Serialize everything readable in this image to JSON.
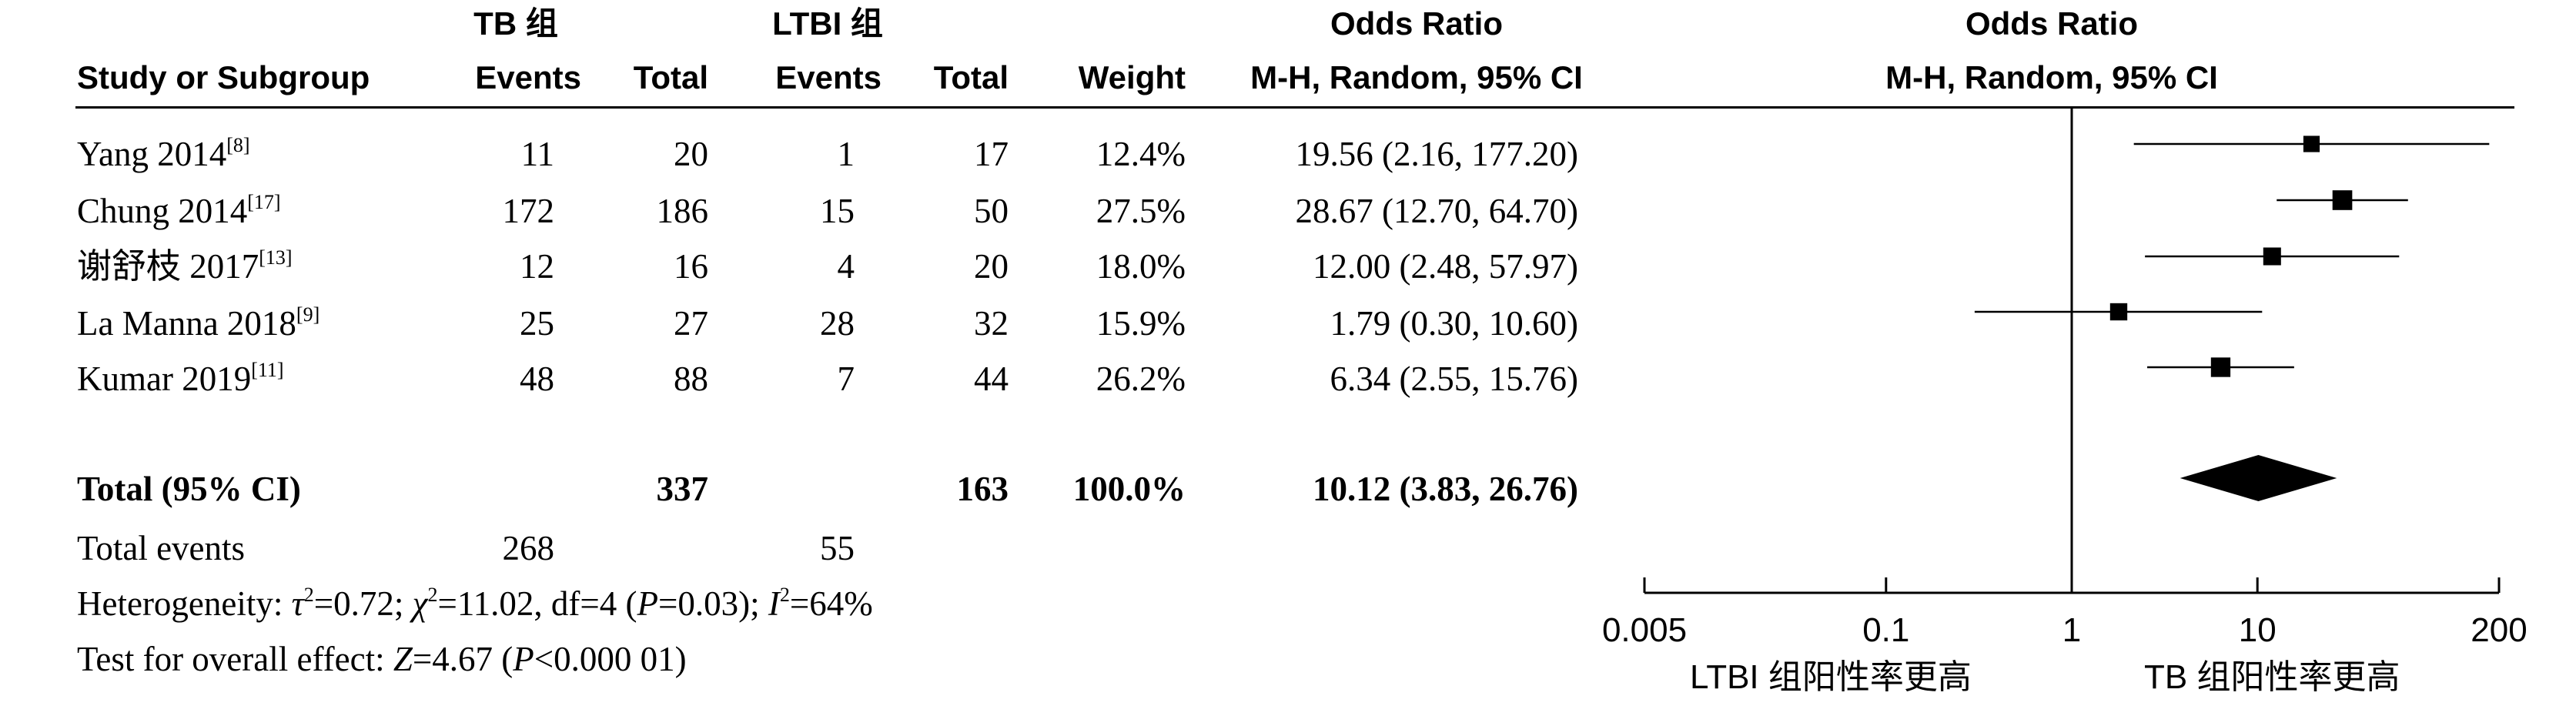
{
  "header": {
    "col_study": "Study or Subgroup",
    "group1": "TB 组",
    "group2": "LTBI 组",
    "events": "Events",
    "total": "Total",
    "weight": "Weight",
    "or_title": "Odds Ratio",
    "or_method": "M-H, Random, 95% CI",
    "plot_title": "Odds Ratio",
    "plot_method": "M-H, Random, 95% CI"
  },
  "studies": [
    {
      "name": "Yang 2014",
      "ref": "[8]",
      "tb_events": "11",
      "tb_total": "20",
      "ltbi_events": "1",
      "ltbi_total": "17",
      "weight": "12.4%",
      "ci_text": "19.56 (2.16, 177.20)"
    },
    {
      "name": "Chung 2014",
      "ref": "[17]",
      "tb_events": "172",
      "tb_total": "186",
      "ltbi_events": "15",
      "ltbi_total": "50",
      "weight": "27.5%",
      "ci_text": "28.67 (12.70, 64.70)"
    },
    {
      "name": "谢舒枝 2017",
      "ref": "[13]",
      "tb_events": "12",
      "tb_total": "16",
      "ltbi_events": "4",
      "ltbi_total": "20",
      "weight": "18.0%",
      "ci_text": "12.00 (2.48, 57.97)"
    },
    {
      "name": "La Manna 2018",
      "ref": "[9]",
      "tb_events": "25",
      "tb_total": "27",
      "ltbi_events": "28",
      "ltbi_total": "32",
      "weight": "15.9%",
      "ci_text": "1.79 (0.30, 10.60)"
    },
    {
      "name": "Kumar 2019",
      "ref": "[11]",
      "tb_events": "48",
      "tb_total": "88",
      "ltbi_events": "7",
      "ltbi_total": "44",
      "weight": "26.2%",
      "ci_text": "6.34 (2.55, 15.76)"
    }
  ],
  "total_row": {
    "label": "Total (95% CI)",
    "tb_total": "337",
    "ltbi_total": "163",
    "weight": "100.0%",
    "ci_text": "10.12 (3.83, 26.76)"
  },
  "events_row": {
    "label": "Total events",
    "tb_events": "268",
    "ltbi_events": "55"
  },
  "heterogeneity": {
    "prefix": "Heterogeneity: ",
    "tau_sym": "τ",
    "tau_rest": "=0.72; ",
    "chi_sym": "χ",
    "chi_rest": "=11.02, df=4 (",
    "p_sym": "P",
    "p_rest": "=0.03); ",
    "i_sym": "I",
    "i_rest": "=64%",
    "sq": "2"
  },
  "overall": {
    "prefix": "Test for overall effect: ",
    "z_sym": "Z",
    "z_rest": "=4.67 (",
    "p_sym": "P",
    "p_rest": "<0.000 01)"
  },
  "axis_labels": {
    "left": "LTBI 组阳性率更高",
    "right": "TB 组阳性率更高"
  },
  "chart_data": {
    "type": "forest",
    "scale": "log",
    "xlim": [
      0.005,
      200
    ],
    "ticks": [
      0.005,
      0.1,
      1,
      10,
      200
    ],
    "tick_labels": [
      "0.005",
      "0.1",
      "1",
      "10",
      "200"
    ],
    "null_line": 1,
    "studies": [
      {
        "name": "Yang 2014",
        "or": 19.56,
        "low": 2.16,
        "high": 177.2,
        "weight": 12.4
      },
      {
        "name": "Chung 2014",
        "or": 28.67,
        "low": 12.7,
        "high": 64.7,
        "weight": 27.5
      },
      {
        "name": "谢舒枝 2017",
        "or": 12.0,
        "low": 2.48,
        "high": 57.97,
        "weight": 18.0
      },
      {
        "name": "La Manna 2018",
        "or": 1.79,
        "low": 0.3,
        "high": 10.6,
        "weight": 15.9
      },
      {
        "name": "Kumar 2019",
        "or": 6.34,
        "low": 2.55,
        "high": 15.76,
        "weight": 26.2
      }
    ],
    "pooled": {
      "or": 10.12,
      "low": 3.83,
      "high": 26.76
    }
  },
  "colors": {
    "ink": "#000000",
    "background": "#ffffff"
  }
}
